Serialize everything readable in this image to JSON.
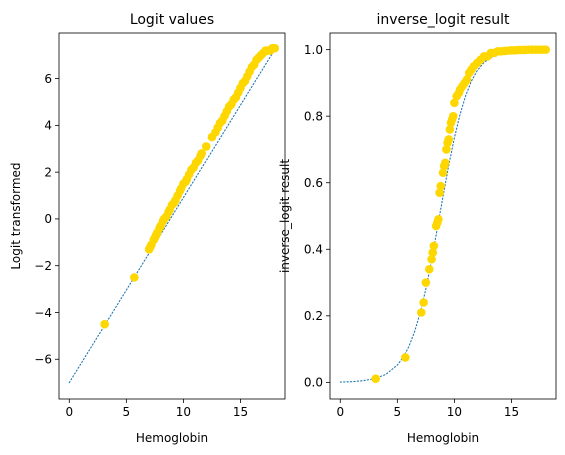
{
  "colors": {
    "curve": "#1f77b4",
    "points": "#ffd700"
  },
  "chart_data": [
    {
      "type": "scatter",
      "title": "Logit values",
      "xlabel": "Hemoglobin",
      "ylabel": "Logit transformed",
      "xlim": [
        -0.9,
        18.9
      ],
      "ylim": [
        -7.7,
        7.95
      ],
      "xticks": [
        0,
        5,
        10,
        15
      ],
      "xtick_labels": [
        "0",
        "5",
        "10",
        "15"
      ],
      "yticks": [
        -6,
        -4,
        -2,
        0,
        2,
        4,
        6
      ],
      "ytick_labels": [
        "−6",
        "−4",
        "−2",
        "0",
        "2",
        "4",
        "6"
      ],
      "grid": false,
      "series": [
        {
          "type": "line",
          "style": "dotted",
          "x": [
            0,
            18
          ],
          "y": [
            -7.0,
            7.24
          ]
        },
        {
          "type": "scatter",
          "x": [
            3.1,
            5.7,
            7.0,
            7.1,
            7.2,
            7.4,
            7.5,
            7.6,
            7.7,
            7.9,
            8.0,
            8.2,
            8.3,
            8.5,
            8.7,
            8.8,
            9.0,
            9.2,
            9.3,
            9.5,
            9.7,
            9.8,
            10.0,
            10.2,
            10.3,
            10.5,
            10.7,
            10.9,
            11.1,
            11.3,
            11.5,
            11.6,
            12.0,
            12.5,
            12.8,
            13.0,
            13.2,
            13.4,
            13.6,
            13.8,
            14.0,
            14.2,
            14.4,
            14.6,
            14.8,
            15.0,
            15.2,
            15.4,
            15.6,
            15.8,
            16.0,
            16.2,
            16.4,
            16.6,
            16.8,
            17.0,
            17.2,
            17.4,
            17.6,
            17.8,
            18.0
          ],
          "y": [
            -4.5,
            -2.5,
            -1.3,
            -1.2,
            -1.1,
            -0.9,
            -0.8,
            -0.7,
            -0.6,
            -0.4,
            -0.3,
            -0.1,
            0.0,
            0.1,
            0.3,
            0.4,
            0.6,
            0.7,
            0.8,
            1.0,
            1.2,
            1.3,
            1.5,
            1.6,
            1.7,
            1.9,
            2.1,
            2.2,
            2.4,
            2.5,
            2.7,
            2.8,
            3.1,
            3.5,
            3.7,
            3.9,
            4.1,
            4.2,
            4.4,
            4.6,
            4.8,
            4.9,
            5.1,
            5.2,
            5.4,
            5.6,
            5.8,
            5.9,
            6.1,
            6.3,
            6.5,
            6.6,
            6.8,
            6.9,
            7.0,
            7.1,
            7.2,
            7.2,
            7.2,
            7.3,
            7.3
          ]
        }
      ]
    },
    {
      "type": "scatter",
      "title": "inverse_logit result",
      "xlabel": "Hemoglobin",
      "ylabel": "inverse_logit result",
      "xlim": [
        -0.9,
        18.9
      ],
      "ylim": [
        -0.05,
        1.05
      ],
      "xticks": [
        0,
        5,
        10,
        15
      ],
      "xtick_labels": [
        "0",
        "5",
        "10",
        "15"
      ],
      "yticks": [
        0.0,
        0.2,
        0.4,
        0.6,
        0.8,
        1.0
      ],
      "ytick_labels": [
        "0.0",
        "0.2",
        "0.4",
        "0.6",
        "0.8",
        "1.0"
      ],
      "grid": false,
      "series": [
        {
          "type": "line",
          "style": "dotted",
          "x": [
            0,
            1,
            2,
            3,
            4,
            5,
            5.5,
            6,
            6.5,
            7,
            7.5,
            8,
            8.5,
            9,
            9.5,
            10,
            10.5,
            11,
            11.5,
            12,
            12.5,
            13,
            14,
            15,
            16,
            17,
            18
          ],
          "y": [
            0.001,
            0.002,
            0.005,
            0.011,
            0.024,
            0.052,
            0.075,
            0.107,
            0.151,
            0.209,
            0.281,
            0.367,
            0.462,
            0.559,
            0.652,
            0.735,
            0.806,
            0.863,
            0.906,
            0.937,
            0.958,
            0.973,
            0.989,
            0.995,
            0.998,
            0.999,
            1.0
          ]
        },
        {
          "type": "scatter",
          "x": [
            3.1,
            5.7,
            7.1,
            7.3,
            7.5,
            7.8,
            8.0,
            8.1,
            8.2,
            8.4,
            8.5,
            8.6,
            8.7,
            8.8,
            9.0,
            9.1,
            9.2,
            9.3,
            9.4,
            9.5,
            9.6,
            9.7,
            9.8,
            9.9,
            10.0,
            10.2,
            10.4,
            10.5,
            10.7,
            10.9,
            11.1,
            11.3,
            11.5,
            11.7,
            12.0,
            12.3,
            12.6,
            12.9,
            13.2,
            13.5,
            13.8,
            14.1,
            14.4,
            14.7,
            15.0,
            15.3,
            15.6,
            15.9,
            16.2,
            16.5,
            16.8,
            17.1,
            17.4,
            17.7,
            18.0
          ],
          "y": [
            0.011,
            0.075,
            0.21,
            0.24,
            0.3,
            0.34,
            0.37,
            0.39,
            0.41,
            0.47,
            0.48,
            0.49,
            0.57,
            0.59,
            0.63,
            0.65,
            0.66,
            0.7,
            0.72,
            0.73,
            0.76,
            0.78,
            0.79,
            0.8,
            0.84,
            0.86,
            0.87,
            0.88,
            0.89,
            0.9,
            0.91,
            0.93,
            0.94,
            0.95,
            0.96,
            0.97,
            0.98,
            0.98,
            0.99,
            0.99,
            0.995,
            0.995,
            0.996,
            0.997,
            0.998,
            0.998,
            0.999,
            0.999,
            0.999,
            1.0,
            1.0,
            1.0,
            1.0,
            1.0,
            1.0
          ]
        }
      ]
    }
  ]
}
